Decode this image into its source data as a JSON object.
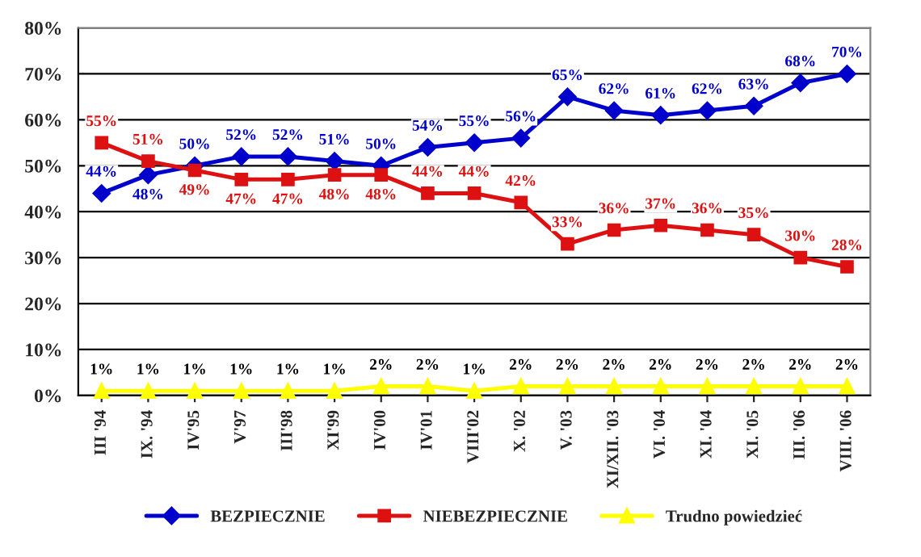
{
  "chart_data": {
    "type": "line",
    "categories": [
      "III '94",
      "IX. '94",
      "IV'95",
      "V'97",
      "III'98",
      "XI'99",
      "IV'00",
      "IV'01",
      "VIII'02",
      "X. '02",
      "V. '03",
      "XI/XII. '03",
      "VI. '04",
      "XI. '04",
      "XI. '05",
      "III. '06",
      "VIII. '06"
    ],
    "series": [
      {
        "name": "BEZPIECZNIE",
        "color": "#0000cc",
        "marker": "diamond",
        "values": [
          44,
          48,
          50,
          52,
          52,
          51,
          50,
          54,
          55,
          56,
          65,
          62,
          61,
          62,
          63,
          68,
          70
        ],
        "value_labels": [
          "44%",
          "48%",
          "50%",
          "52%",
          "52%",
          "51%",
          "50%",
          "54%",
          "55%",
          "56%",
          "65%",
          "62%",
          "61%",
          "62%",
          "63%",
          "68%",
          "70%"
        ]
      },
      {
        "name": "NIEBEZPIECZNIE",
        "color": "#dd1111",
        "marker": "square",
        "values": [
          55,
          51,
          49,
          47,
          47,
          48,
          48,
          44,
          44,
          42,
          33,
          36,
          37,
          36,
          35,
          30,
          28
        ],
        "value_labels": [
          "55%",
          "51%",
          "49%",
          "47%",
          "47%",
          "48%",
          "48%",
          "44%",
          "44%",
          "42%",
          "33%",
          "36%",
          "37%",
          "36%",
          "35%",
          "30%",
          "28%"
        ]
      },
      {
        "name": "Trudno powiedzieć",
        "color": "#ffff00",
        "marker": "triangle",
        "values": [
          1,
          1,
          1,
          1,
          1,
          1,
          2,
          2,
          1,
          2,
          2,
          2,
          2,
          2,
          2,
          2,
          2
        ],
        "value_labels": [
          "1%",
          "1%",
          "1%",
          "1%",
          "1%",
          "1%",
          "2%",
          "2%",
          "1%",
          "2%",
          "2%",
          "2%",
          "2%",
          "2%",
          "2%",
          "2%",
          "2%"
        ]
      }
    ],
    "ylim": [
      0,
      80
    ],
    "yticks": [
      {
        "value": 0,
        "label": "0%"
      },
      {
        "value": 10,
        "label": "10%"
      },
      {
        "value": 20,
        "label": "20%"
      },
      {
        "value": 30,
        "label": "30%"
      },
      {
        "value": 40,
        "label": "40%"
      },
      {
        "value": 50,
        "label": "50%"
      },
      {
        "value": 60,
        "label": "60%"
      },
      {
        "value": 70,
        "label": "70%"
      },
      {
        "value": 80,
        "label": "80%"
      }
    ],
    "grid": "y",
    "legend": "bottom",
    "line_style": "solid"
  }
}
